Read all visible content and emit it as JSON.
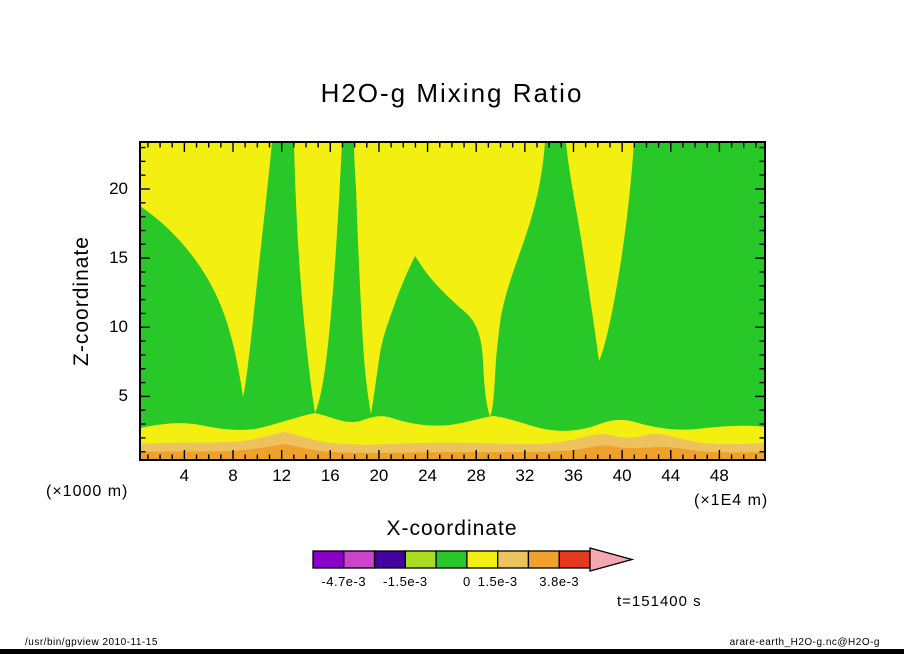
{
  "chart_data": {
    "type": "filled-contour",
    "title": "H2O-g Mixing Ratio",
    "xlabel": "X-coordinate",
    "ylabel": "Z-coordinate",
    "x_unit_label": "(×1E4 m)",
    "y_unit_label": "(×1000 m)",
    "x_ticks": [
      4,
      8,
      12,
      16,
      20,
      24,
      28,
      32,
      36,
      40,
      44,
      48
    ],
    "y_ticks": [
      5,
      10,
      15,
      20
    ],
    "xlim": [
      0.35,
      51.75
    ],
    "ylim": [
      0.4,
      23.4
    ],
    "grid": false,
    "time_label": "t=151400 s",
    "footer_left": "/usr/bin/gpview  2010-11-15",
    "footer_right": "arare-earth_H2O-g.nc@H2O-g",
    "region_colors": {
      "green": "#28c828",
      "yellow": "#f2ef11",
      "sand": "#edc25e",
      "orange": "#f0a02d",
      "frame": "#000000"
    },
    "field_description": "H2O gas mixing ratio cross-section: green background (0 to -1.5e-3 bin) with yellow downdraft plumes descending from the model top near x=2-9, x=12-16, x=28-45 and x=47-52 (x1E4 m); a green updraft peak reaches z=15 near x=22; thin yellow, sand and orange layers of higher mixing ratio lie along the surface below z=2.",
    "colorbar": {
      "cells": [
        "#8b00c8",
        "#cc44cc",
        "#4400a0",
        "#aadd22",
        "#28c828",
        "#f2ef11",
        "#edc25e",
        "#f0a02d",
        "#e5391f"
      ],
      "arrow_color": "#f3a8b0",
      "labels": [
        {
          "text": "-4.7e-3",
          "boundary": 1
        },
        {
          "text": "-1.5e-3",
          "boundary": 3
        },
        {
          "text": "0",
          "boundary": 5
        },
        {
          "text": "1.5e-3",
          "boundary": 6
        },
        {
          "text": "3.8e-3",
          "boundary": 8
        }
      ]
    }
  }
}
